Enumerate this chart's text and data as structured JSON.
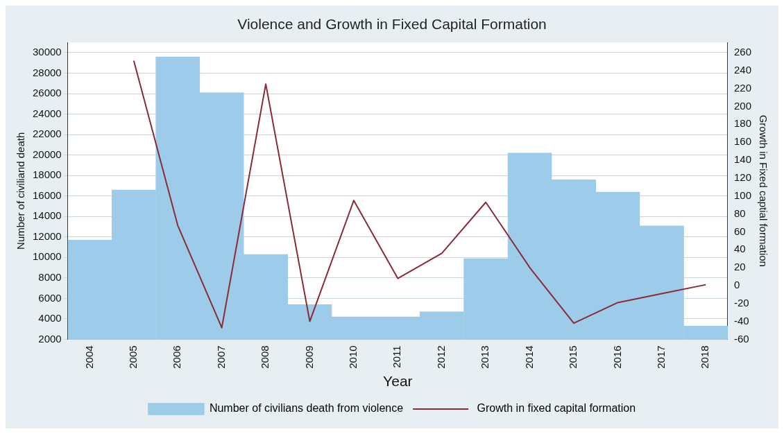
{
  "chart_data": {
    "type": "bar",
    "title": "Violence and Growth in Fixed Capital Formation",
    "xlabel": "Year",
    "ylabel": "Number of civiliand death",
    "y2label": "Growth in Fixed captial formation",
    "categories": [
      "2004",
      "2005",
      "2006",
      "2007",
      "2008",
      "2009",
      "2010",
      "2011",
      "2012",
      "2013",
      "2014",
      "2015",
      "2016",
      "2017",
      "2018"
    ],
    "series": [
      {
        "name": "Number of civilians death from violence",
        "color": "#9dcbea",
        "values": [
          11700,
          16600,
          29600,
          26100,
          10300,
          5400,
          4200,
          4200,
          4700,
          9900,
          20200,
          17600,
          16400,
          13100,
          3300
        ]
      },
      {
        "name": " Growth in fixed capital formation",
        "type": "line",
        "axis": "y2",
        "color": "#8b2a35",
        "values": [
          null,
          251,
          67,
          -47,
          225,
          -40,
          95,
          8,
          36,
          93,
          20,
          -42,
          -19,
          -9,
          1
        ]
      }
    ],
    "ylim": [
      2000,
      31000
    ],
    "yticks": [
      2000,
      4000,
      6000,
      8000,
      10000,
      12000,
      14000,
      16000,
      18000,
      20000,
      22000,
      24000,
      26000,
      28000,
      30000
    ],
    "y2lim": [
      -60,
      271.4
    ],
    "y2ticks": [
      -60,
      -40,
      -20,
      0,
      20,
      40,
      60,
      80,
      100,
      120,
      140,
      160,
      180,
      200,
      220,
      240,
      260
    ],
    "grid": "y",
    "legend": "bottom",
    "marker": "none"
  }
}
